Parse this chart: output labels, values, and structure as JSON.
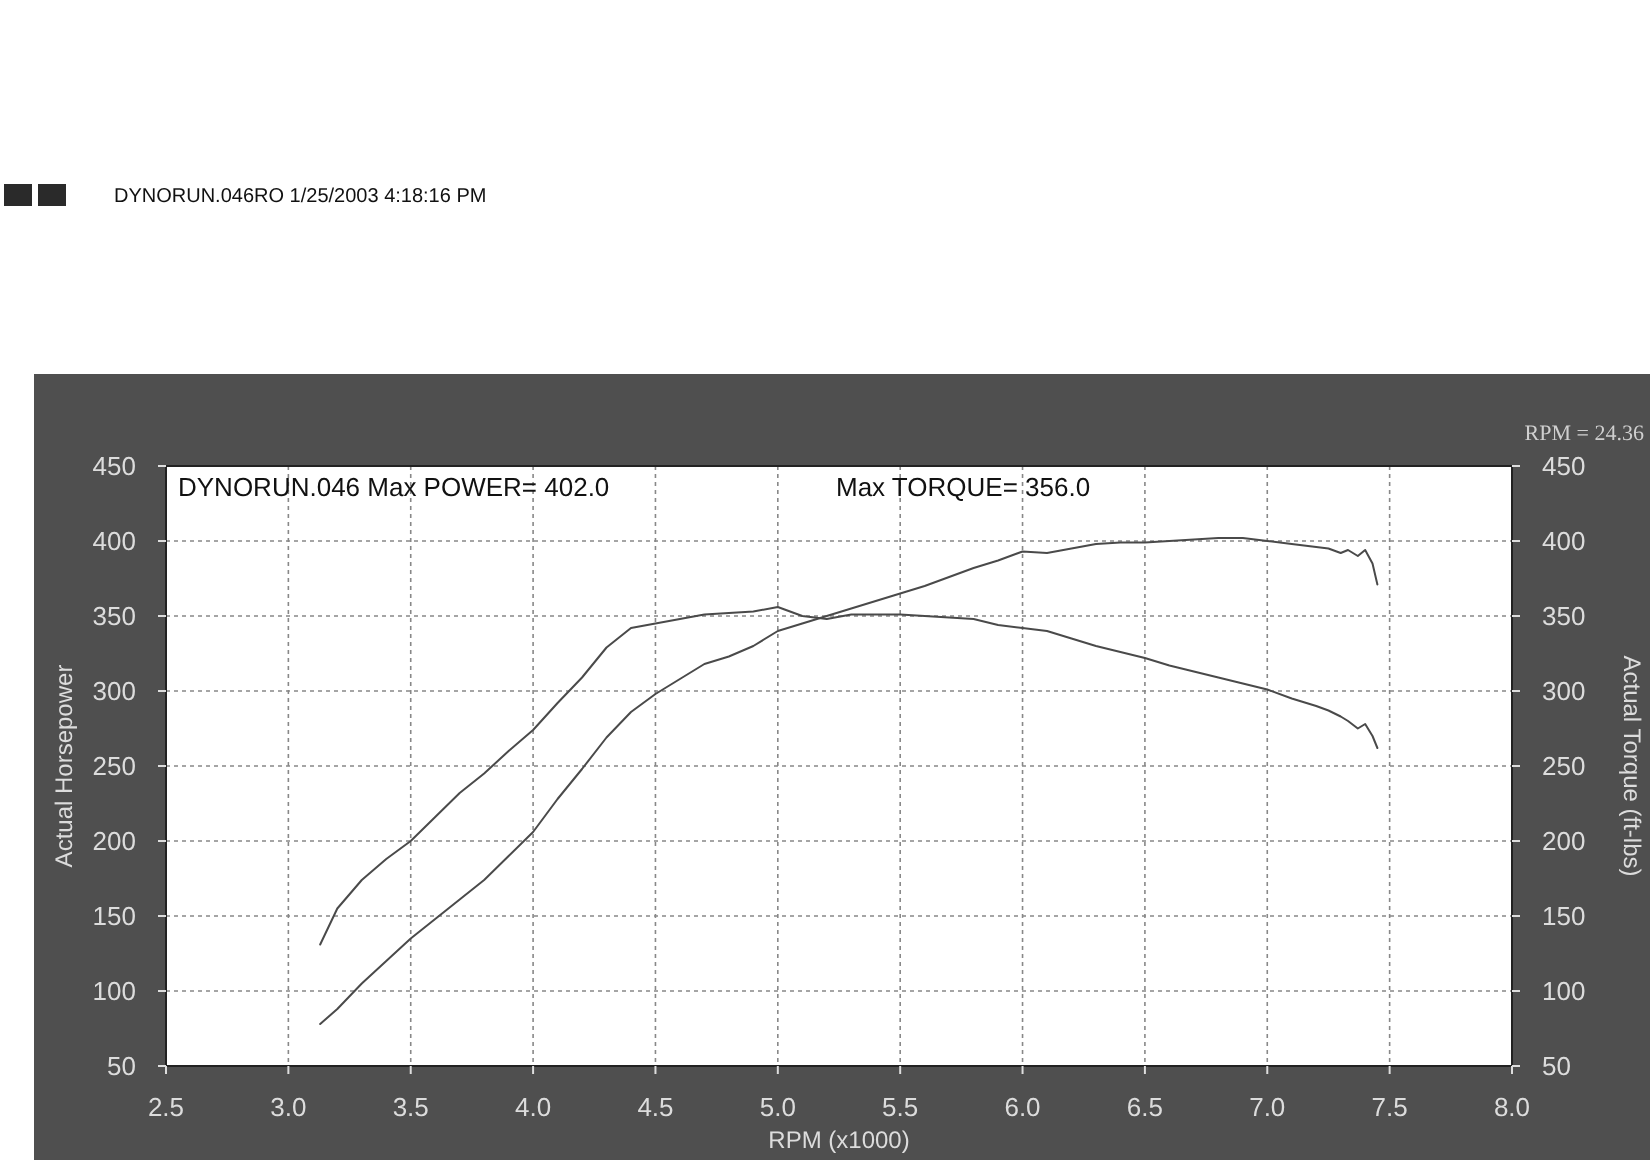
{
  "chart_data": {
    "type": "line",
    "annotations": [
      "DYNORUN.046RO  1/25/2003 4:18:16 PM",
      "DYNORUN.046  Max POWER= 402.0",
      "Max TORQUE= 356.0",
      "RPM = 24.36"
    ],
    "xlabel": "RPM (x1000)",
    "ylabel": "Actual Horsepower",
    "y2label": "Actual Torque (ft-lbs)",
    "x": [
      3.13,
      3.2,
      3.3,
      3.4,
      3.5,
      3.6,
      3.7,
      3.8,
      3.9,
      4.0,
      4.1,
      4.2,
      4.3,
      4.4,
      4.5,
      4.6,
      4.7,
      4.8,
      4.9,
      5.0,
      5.1,
      5.2,
      5.3,
      5.4,
      5.5,
      5.6,
      5.7,
      5.8,
      5.9,
      6.0,
      6.1,
      6.2,
      6.3,
      6.4,
      6.5,
      6.6,
      6.7,
      6.8,
      6.9,
      7.0,
      7.1,
      7.2,
      7.25,
      7.3,
      7.33,
      7.37,
      7.4,
      7.43,
      7.45
    ],
    "series": [
      {
        "color": "#4a4a4a",
        "values": [
          78,
          88,
          105,
          120,
          135,
          148,
          161,
          174,
          190,
          206,
          228,
          248,
          269,
          286,
          298,
          308,
          318,
          323,
          330,
          340,
          345,
          350,
          355,
          360,
          365,
          370,
          376,
          382,
          387,
          393,
          392,
          395,
          398,
          399,
          399,
          400,
          401,
          402,
          402,
          400,
          398,
          396,
          395,
          392,
          394,
          390,
          394,
          385,
          371
        ]
      },
      {
        "color": "#4a4a4a",
        "values": [
          131,
          155,
          174,
          188,
          200,
          216,
          232,
          245,
          260,
          274,
          292,
          309,
          329,
          342,
          345,
          348,
          351,
          352,
          353,
          356,
          350,
          348,
          351,
          351,
          351,
          350,
          349,
          348,
          344,
          342,
          340,
          335,
          330,
          326,
          322,
          317,
          313,
          309,
          305,
          301,
          295,
          290,
          287,
          283,
          280,
          275,
          278,
          270,
          262
        ]
      }
    ],
    "xlim": [
      2.5,
      8.0
    ],
    "xticks": [
      {
        "value": 2.5,
        "label": "2.5"
      },
      {
        "value": 3,
        "label": "3.0"
      },
      {
        "value": 3.5,
        "label": "3.5"
      },
      {
        "value": 4,
        "label": "4.0"
      },
      {
        "value": 4.5,
        "label": "4.5"
      },
      {
        "value": 5,
        "label": "5.0"
      },
      {
        "value": 5.5,
        "label": "5.5"
      },
      {
        "value": 6,
        "label": "6.0"
      },
      {
        "value": 6.5,
        "label": "6.5"
      },
      {
        "value": 7,
        "label": "7.0"
      },
      {
        "value": 7.5,
        "label": "7.5"
      },
      {
        "value": 8,
        "label": "8.0"
      }
    ],
    "ylim": [
      50,
      450
    ],
    "yticks": [
      50,
      100,
      150,
      200,
      250,
      300,
      350,
      400,
      450
    ],
    "y2lim": [
      50,
      450
    ],
    "y2ticks": [
      50,
      100,
      150,
      200,
      250,
      300,
      350,
      400,
      450
    ],
    "grid": true
  }
}
